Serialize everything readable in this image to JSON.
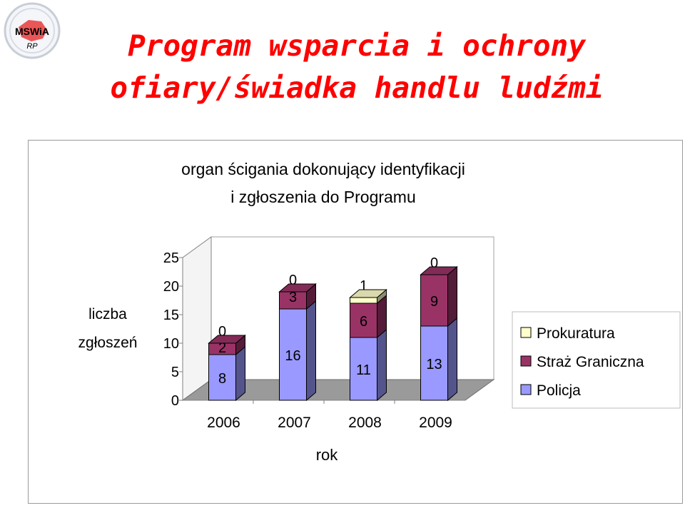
{
  "slide": {
    "title_line1": "Program wsparcia i ochrony",
    "title_line2": "ofiary/świadka handlu ludźmi",
    "logo_text": "MSWiA",
    "logo_subtext": "RP"
  },
  "colors": {
    "title": "#ff0000",
    "policja": "#9999ff",
    "straz_graniczna": "#993366",
    "prokuratura": "#ffffcc"
  },
  "chart_data": {
    "type": "bar",
    "stacked": true,
    "three_d": true,
    "title_line1": "organ ścigania dokonujący identyfikacji",
    "title_line2": "i zgłoszenia do Programu",
    "xlabel": "rok",
    "ylabel_line1": "liczba",
    "ylabel_line2": "zgłoszeń",
    "categories": [
      "2006",
      "2007",
      "2008",
      "2009"
    ],
    "ylim": [
      0,
      25
    ],
    "yticks": [
      "0",
      "5",
      "10",
      "15",
      "20",
      "25"
    ],
    "series": [
      {
        "name": "Policja",
        "values": [
          8,
          16,
          11,
          13
        ],
        "color": "#9999ff"
      },
      {
        "name": "Straż Graniczna",
        "values": [
          2,
          3,
          6,
          9
        ],
        "color": "#993366"
      },
      {
        "name": "Prokuratura",
        "values": [
          0,
          0,
          1,
          0
        ],
        "color": "#ffffcc"
      }
    ],
    "legend_order": [
      "Prokuratura",
      "Straż Graniczna",
      "Policja"
    ],
    "legend_position": "right",
    "data_labels": true,
    "grid": false
  }
}
